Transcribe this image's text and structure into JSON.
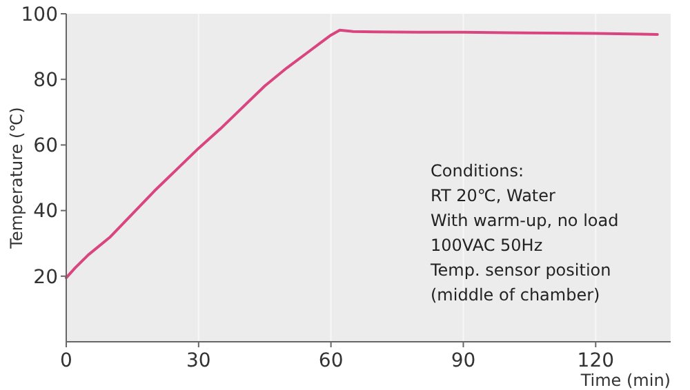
{
  "chart_data": {
    "type": "line",
    "xlabel": "Time (min)",
    "ylabel": "Temperature (℃)",
    "x": [
      0,
      2,
      5,
      10,
      15,
      20,
      25,
      30,
      35,
      40,
      45,
      50,
      55,
      58,
      60,
      62,
      65,
      70,
      80,
      90,
      100,
      110,
      120,
      130,
      134
    ],
    "series": [
      {
        "color": "#d9457f",
        "values": [
          19.5,
          22.5,
          26.5,
          32,
          39,
          46,
          52.5,
          59,
          65,
          71.5,
          78,
          83.5,
          88.5,
          91.5,
          93.5,
          95,
          94.6,
          94.5,
          94.4,
          94.4,
          94.2,
          94.1,
          94,
          93.8,
          93.7
        ]
      }
    ],
    "xlim": [
      0,
      137
    ],
    "xticks": [
      0,
      30,
      60,
      90,
      120
    ],
    "ylim": [
      0,
      100
    ],
    "yticks": [
      20,
      40,
      60,
      80,
      100
    ],
    "grid": "x",
    "marker": "none",
    "line_style": "solid",
    "annotations": [
      "Conditions:\nRT 20℃, Water\nWith warm-up, no load\n100VAC 50Hz\nTemp. sensor position\n(middle of chamber)"
    ]
  }
}
